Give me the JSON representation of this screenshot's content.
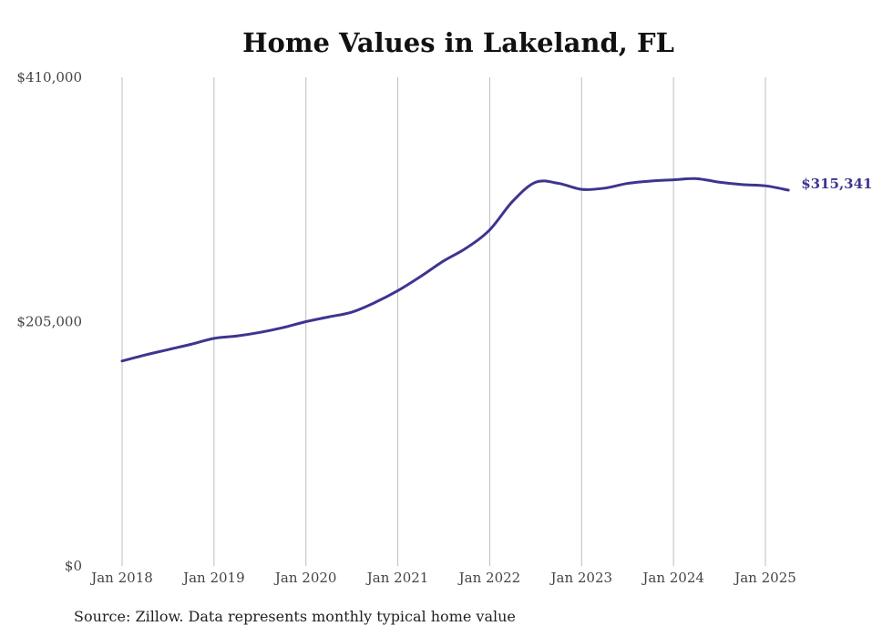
{
  "chart_data": {
    "type": "line",
    "title": "Home Values in Lakeland, FL",
    "xlabel": "",
    "ylabel": "",
    "ylim": [
      0,
      410000
    ],
    "y_ticks": [
      "$410,000",
      "$205,000",
      "$0"
    ],
    "x_ticks": [
      "Jan 2018",
      "Jan 2019",
      "Jan 2020",
      "Jan 2021",
      "Jan 2022",
      "Jan 2023",
      "Jan 2024",
      "Jan 2025"
    ],
    "grid": "vertical",
    "line_color": "#3d3590",
    "end_label": "$315,341",
    "series": [
      {
        "x": [
          "2018-01",
          "2018-04",
          "2018-07",
          "2018-10",
          "2019-01",
          "2019-04",
          "2019-07",
          "2019-10",
          "2020-01",
          "2020-04",
          "2020-07",
          "2020-10",
          "2021-01",
          "2021-04",
          "2021-07",
          "2021-10",
          "2022-01",
          "2022-04",
          "2022-07",
          "2022-10",
          "2023-01",
          "2023-04",
          "2023-07",
          "2023-10",
          "2024-01",
          "2024-04",
          "2024-07",
          "2024-10",
          "2025-01",
          "2025-04"
        ],
        "values": [
          172000,
          177000,
          181500,
          186000,
          191000,
          193000,
          196000,
          200000,
          205000,
          209000,
          213000,
          221000,
          231000,
          243000,
          256000,
          267000,
          282000,
          306000,
          322000,
          321000,
          316000,
          317000,
          321000,
          323000,
          324000,
          325000,
          322000,
          320000,
          319000,
          315341
        ]
      }
    ]
  },
  "source": "Source: Zillow. Data represents monthly typical home value"
}
